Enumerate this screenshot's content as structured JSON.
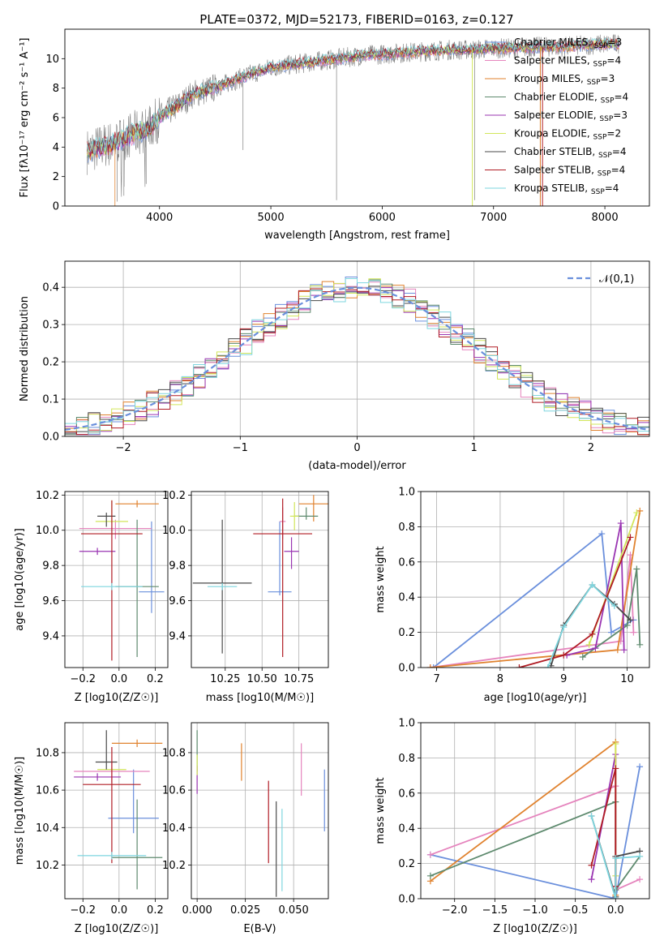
{
  "figure_title": "PLATE=0372, MJD=52173, FIBERID=0163, z=0.127",
  "colors": {
    "Chabrier MILES": "#6a8fdc",
    "Salpeter MILES": "#e584bd",
    "Kroupa MILES": "#e0822e",
    "Chabrier ELODIE": "#5e8a6e",
    "Salpeter ELODIE": "#9a35b2",
    "Kroupa ELODIE": "#d2e65a",
    "Chabrier STELIB": "#4a4a4a",
    "Salpeter STELIB": "#b01c24",
    "Kroupa STELIB": "#7ed6df",
    "data": "#808080",
    "normal": "#6a8fdc"
  },
  "chart_data": [
    {
      "id": "spectrum",
      "type": "line",
      "title": "PLATE=0372, MJD=52173, FIBERID=0163, z=0.127",
      "xlabel": "wavelength [Angstrom, rest frame]",
      "ylabel": "Flux [fλ10⁻¹⁷ erg cm⁻² s⁻¹ A⁻¹]",
      "xlim": [
        3150,
        8400
      ],
      "ylim": [
        0,
        12
      ],
      "xticks": [
        "4000",
        "5000",
        "6000",
        "7000",
        "8000"
      ],
      "yticks": [
        "0",
        "2",
        "4",
        "6",
        "8",
        "10"
      ],
      "grid": false,
      "legend": "top-right",
      "legend_entries": [
        "Chabrier MILES, NSSP=3",
        "Salpeter MILES, NSSP=4",
        "Kroupa MILES, NSSP=3",
        "Chabrier ELODIE, NSSP=4",
        "Salpeter ELODIE, NSSP=3",
        "Kroupa ELODIE, NSSP=2",
        "Chabrier STELIB, NSSP=4",
        "Salpeter STELIB, NSSP=4",
        "Kroupa STELIB, NSSP=4"
      ],
      "continuum": {
        "x": [
          3350,
          3500,
          3600,
          3700,
          3800,
          3900,
          4000,
          4100,
          4200,
          4300,
          4400,
          4600,
          4800,
          5000,
          5200,
          5400,
          5600,
          5800,
          6000,
          6200,
          6400,
          6600,
          6800,
          7000,
          7200,
          7400,
          7600,
          7800,
          8000,
          8100
        ],
        "y": [
          3.7,
          4.1,
          4.3,
          4.7,
          5.0,
          5.2,
          6.0,
          6.5,
          7.0,
          7.6,
          7.8,
          8.3,
          8.9,
          9.4,
          9.6,
          9.8,
          10.0,
          10.2,
          10.3,
          10.4,
          10.5,
          10.6,
          10.6,
          10.7,
          10.7,
          10.8,
          10.8,
          10.9,
          11.0,
          11.0
        ]
      }
    },
    {
      "id": "residuals",
      "type": "histogram",
      "xlabel": "(data-model)/error",
      "ylabel": "Normed distribution",
      "xlim": [
        -2.5,
        2.5
      ],
      "ylim": [
        0,
        0.47
      ],
      "xticks": [
        "−2",
        "−1",
        "0",
        "1",
        "2"
      ],
      "yticks": [
        "0.0",
        "0.1",
        "0.2",
        "0.3",
        "0.4"
      ],
      "grid": true,
      "legend": "top-right",
      "legend_entries": [
        "𝒩(0,1)"
      ],
      "bins": {
        "start": -2.5,
        "width": 0.1,
        "count": 50
      }
    },
    {
      "id": "age-vs-z",
      "type": "scatter",
      "xlabel": "Z [log10(Z/Z☉)]",
      "ylabel": "age  [log10(age/yr)]",
      "xlim": [
        -0.3,
        0.27
      ],
      "ylim": [
        9.22,
        10.22
      ],
      "xticks": [
        "−0.2",
        "0.0",
        "0.2"
      ],
      "yticks": [
        "9.4",
        "9.6",
        "9.8",
        "10.0",
        "10.2"
      ],
      "grid": true,
      "points": [
        {
          "model": "Chabrier MILES",
          "x": 0.18,
          "y": 9.65,
          "xerr": 0.07,
          "yerr": [
            0.12,
            0.4
          ]
        },
        {
          "model": "Salpeter MILES",
          "x": -0.02,
          "y": 10.01,
          "xerr": 0.2,
          "yerr": [
            0.06,
            0.05
          ]
        },
        {
          "model": "Kroupa MILES",
          "x": 0.1,
          "y": 10.15,
          "xerr": 0.12,
          "yerr": [
            0.02,
            0.02
          ]
        },
        {
          "model": "Chabrier ELODIE",
          "x": 0.1,
          "y": 9.68,
          "xerr": 0.12,
          "yerr": [
            0.4,
            0.38
          ]
        },
        {
          "model": "Salpeter ELODIE",
          "x": -0.12,
          "y": 9.88,
          "xerr": 0.1,
          "yerr": [
            0.02,
            0.02
          ]
        },
        {
          "model": "Kroupa ELODIE",
          "x": -0.04,
          "y": 10.05,
          "xerr": 0.09,
          "yerr": [
            0.01,
            0.12
          ]
        },
        {
          "model": "Chabrier STELIB",
          "x": -0.07,
          "y": 10.08,
          "xerr": 0.05,
          "yerr": [
            0.06,
            0.02
          ]
        },
        {
          "model": "Salpeter STELIB",
          "x": -0.04,
          "y": 9.98,
          "xerr": 0.17,
          "yerr": [
            0.72,
            0.19
          ]
        },
        {
          "model": "Kroupa STELIB",
          "x": -0.04,
          "y": 9.68,
          "xerr": 0.17,
          "yerr": [
            0.02,
            0.02
          ]
        }
      ]
    },
    {
      "id": "age-vs-mass",
      "type": "scatter",
      "xlabel": "mass [log10(M/M☉)]",
      "ylabel": "",
      "xlim": [
        10.02,
        10.95
      ],
      "ylim": [
        9.22,
        10.22
      ],
      "xticks": [
        "10.25",
        "10.50",
        "10.75"
      ],
      "yticks": [
        "9.4",
        "9.6",
        "9.8",
        "10.0",
        "10.2"
      ],
      "grid": true,
      "points": [
        {
          "model": "Chabrier MILES",
          "x": 10.62,
          "y": 9.65,
          "xerr": 0.08,
          "yerr": [
            0.02,
            0.4
          ]
        },
        {
          "model": "Salpeter MILES",
          "x": 10.64,
          "y": 10.05,
          "xerr": 0.02,
          "yerr": [
            0.1,
            0.08
          ]
        },
        {
          "model": "Kroupa MILES",
          "x": 10.85,
          "y": 10.15,
          "xerr": 0.1,
          "yerr": [
            0.1,
            0.05
          ]
        },
        {
          "model": "Chabrier ELODIE",
          "x": 10.8,
          "y": 10.08,
          "xerr": 0.08,
          "yerr": [
            0.02,
            0.05
          ]
        },
        {
          "model": "Salpeter ELODIE",
          "x": 10.7,
          "y": 9.88,
          "xerr": 0.05,
          "yerr": [
            0.1,
            0.08
          ]
        },
        {
          "model": "Kroupa ELODIE",
          "x": 10.72,
          "y": 10.08,
          "xerr": 0.03,
          "yerr": [
            0.08,
            0.08
          ]
        },
        {
          "model": "Chabrier STELIB",
          "x": 10.23,
          "y": 9.7,
          "xerr": 0.2,
          "yerr": [
            0.4,
            0.36
          ]
        },
        {
          "model": "Salpeter STELIB",
          "x": 10.64,
          "y": 9.98,
          "xerr": 0.2,
          "yerr": [
            0.7,
            0.2
          ]
        },
        {
          "model": "Kroupa STELIB",
          "x": 10.23,
          "y": 9.68,
          "xerr": 0.1,
          "yerr": [
            0.02,
            0.02
          ]
        }
      ]
    },
    {
      "id": "weight-vs-age",
      "type": "line",
      "xlabel": "age  [log10(age/yr)]",
      "ylabel": "mass weight",
      "xlim": [
        6.75,
        10.35
      ],
      "ylim": [
        0,
        1
      ],
      "xticks": [
        "7",
        "8",
        "9",
        "10"
      ],
      "yticks": [
        "0.0",
        "0.2",
        "0.4",
        "0.6",
        "0.8",
        "1.0"
      ],
      "grid": true,
      "series": [
        {
          "model": "Chabrier MILES",
          "x": [
            6.95,
            9.6,
            9.75,
            10.1
          ],
          "y": [
            0.0,
            0.76,
            0.2,
            0.27
          ]
        },
        {
          "model": "Salpeter MILES",
          "x": [
            6.9,
            9.9,
            10.05,
            10.1
          ],
          "y": [
            0.0,
            0.15,
            0.64,
            0.2
          ]
        },
        {
          "model": "Kroupa MILES",
          "x": [
            6.9,
            9.85,
            10.2
          ],
          "y": [
            0.0,
            0.1,
            0.89
          ]
        },
        {
          "model": "Chabrier ELODIE",
          "x": [
            9.3,
            10.0,
            10.15,
            10.2
          ],
          "y": [
            0.06,
            0.24,
            0.56,
            0.13
          ]
        },
        {
          "model": "Salpeter ELODIE",
          "x": [
            9.05,
            9.5,
            9.9,
            9.95
          ],
          "y": [
            0.07,
            0.11,
            0.82,
            0.1
          ]
        },
        {
          "model": "Kroupa ELODIE",
          "x": [
            9.4,
            10.15
          ],
          "y": [
            0.13,
            0.88
          ]
        },
        {
          "model": "Chabrier STELIB",
          "x": [
            8.8,
            9.0,
            9.45,
            9.8,
            10.05
          ],
          "y": [
            0.01,
            0.24,
            0.47,
            0.36,
            0.27
          ]
        },
        {
          "model": "Salpeter STELIB",
          "x": [
            8.3,
            9.0,
            9.45,
            10.05
          ],
          "y": [
            0.0,
            0.07,
            0.19,
            0.74
          ]
        },
        {
          "model": "Kroupa STELIB",
          "x": [
            8.75,
            9.0,
            9.45,
            9.8
          ],
          "y": [
            0.0,
            0.23,
            0.47,
            0.35
          ]
        }
      ]
    },
    {
      "id": "mass-vs-z",
      "type": "scatter",
      "xlabel": "Z [log10(Z/Z☉)]",
      "ylabel": "mass [log10(M/M☉)]",
      "xlim": [
        -0.3,
        0.27
      ],
      "ylim": [
        10.02,
        10.96
      ],
      "xticks": [
        "−0.2",
        "0.0",
        "0.2"
      ],
      "yticks": [
        "10.2",
        "10.4",
        "10.6",
        "10.8"
      ],
      "grid": true,
      "points": [
        {
          "model": "Chabrier MILES",
          "x": 0.08,
          "y": 10.45,
          "xerr": 0.14,
          "yerr": [
            0.08,
            0.26
          ]
        },
        {
          "model": "Salpeter MILES",
          "x": -0.04,
          "y": 10.7,
          "xerr": 0.21,
          "yerr": [
            0.06,
            0.05
          ]
        },
        {
          "model": "Kroupa MILES",
          "x": 0.1,
          "y": 10.85,
          "xerr": 0.14,
          "yerr": [
            0.02,
            0.02
          ]
        },
        {
          "model": "Chabrier ELODIE",
          "x": 0.1,
          "y": 10.24,
          "xerr": 0.14,
          "yerr": [
            0.17,
            0.31
          ]
        },
        {
          "model": "Salpeter ELODIE",
          "x": -0.12,
          "y": 10.67,
          "xerr": 0.13,
          "yerr": [
            0.02,
            0.02
          ]
        },
        {
          "model": "Kroupa ELODIE",
          "x": -0.04,
          "y": 10.71,
          "xerr": 0.08,
          "yerr": [
            0.01,
            0.01
          ]
        },
        {
          "model": "Chabrier STELIB",
          "x": -0.07,
          "y": 10.75,
          "xerr": 0.06,
          "yerr": [
            0.04,
            0.17
          ]
        },
        {
          "model": "Salpeter STELIB",
          "x": -0.04,
          "y": 10.63,
          "xerr": 0.16,
          "yerr": [
            0.42,
            0.2
          ]
        },
        {
          "model": "Kroupa STELIB",
          "x": -0.04,
          "y": 10.25,
          "xerr": 0.19,
          "yerr": [
            0.02,
            0.02
          ]
        }
      ]
    },
    {
      "id": "mass-vs-ebv",
      "type": "scatter",
      "xlabel": "E(B-V)",
      "ylabel": "",
      "xlim": [
        -0.003,
        0.068
      ],
      "ylim": [
        10.02,
        10.96
      ],
      "xticks": [
        "0.000",
        "0.025",
        "0.050"
      ],
      "yticks": [
        "10.2",
        "10.4",
        "10.6",
        "10.8"
      ],
      "grid": true,
      "points": [
        {
          "model": "Chabrier MILES",
          "x": 0.066,
          "y": 10.55,
          "xerr": 0.0,
          "yerr": [
            0.17,
            0.16
          ]
        },
        {
          "model": "Salpeter MILES",
          "x": 0.054,
          "y": 10.72,
          "xerr": 0.0,
          "yerr": [
            0.15,
            0.13
          ]
        },
        {
          "model": "Kroupa MILES",
          "x": 0.023,
          "y": 10.75,
          "xerr": 0.0,
          "yerr": [
            0.1,
            0.1
          ]
        },
        {
          "model": "Chabrier ELODIE",
          "x": 0.0,
          "y": 10.8,
          "xerr": 0.0,
          "yerr": [
            0.1,
            0.12
          ]
        },
        {
          "model": "Salpeter ELODIE",
          "x": 0.0,
          "y": 10.65,
          "xerr": 0.0,
          "yerr": [
            0.07,
            0.08
          ]
        },
        {
          "model": "Kroupa ELODIE",
          "x": 0.0,
          "y": 10.72,
          "xerr": 0.0,
          "yerr": [
            0.04,
            0.07
          ]
        },
        {
          "model": "Chabrier STELIB",
          "x": 0.041,
          "y": 10.33,
          "xerr": 0.0,
          "yerr": [
            0.3,
            0.21
          ]
        },
        {
          "model": "Salpeter STELIB",
          "x": 0.037,
          "y": 10.43,
          "xerr": 0.0,
          "yerr": [
            0.22,
            0.22
          ]
        },
        {
          "model": "Kroupa STELIB",
          "x": 0.044,
          "y": 10.26,
          "xerr": 0.0,
          "yerr": [
            0.2,
            0.24
          ]
        }
      ]
    },
    {
      "id": "weight-vs-z",
      "type": "line",
      "xlabel": "Z [log10(Z/Z☉)]",
      "ylabel": "mass weight",
      "xlim": [
        -2.42,
        0.42
      ],
      "ylim": [
        0,
        1
      ],
      "xticks": [
        "−2.0",
        "−1.5",
        "−1.0",
        "−0.5",
        "0.0"
      ],
      "yticks": [
        "0.0",
        "0.2",
        "0.4",
        "0.6",
        "0.8",
        "1.0"
      ],
      "grid": true,
      "series": [
        {
          "model": "Chabrier MILES",
          "x": [
            -2.3,
            0.0,
            0.3
          ],
          "y": [
            0.25,
            0.0,
            0.75
          ]
        },
        {
          "model": "Salpeter MILES",
          "x": [
            -2.3,
            0.0,
            0.0,
            0.3
          ],
          "y": [
            0.25,
            0.64,
            0.05,
            0.11
          ]
        },
        {
          "model": "Kroupa MILES",
          "x": [
            -2.3,
            0.0,
            0.0
          ],
          "y": [
            0.1,
            0.89,
            0.02
          ]
        },
        {
          "model": "Chabrier ELODIE",
          "x": [
            -2.3,
            0.0,
            0.0,
            0.3
          ],
          "y": [
            0.13,
            0.55,
            0.05,
            0.24
          ]
        },
        {
          "model": "Salpeter ELODIE",
          "x": [
            -0.3,
            0.0,
            0.0
          ],
          "y": [
            0.11,
            0.82,
            0.07
          ]
        },
        {
          "model": "Kroupa ELODIE",
          "x": [
            0.0,
            0.0
          ],
          "y": [
            0.13,
            0.88
          ]
        },
        {
          "model": "Chabrier STELIB",
          "x": [
            -0.3,
            0.0,
            0.0,
            0.3
          ],
          "y": [
            0.47,
            0.01,
            0.24,
            0.27
          ]
        },
        {
          "model": "Salpeter STELIB",
          "x": [
            -0.3,
            0.0,
            0.0
          ],
          "y": [
            0.19,
            0.74,
            0.07
          ]
        },
        {
          "model": "Kroupa STELIB",
          "x": [
            -0.3,
            0.0,
            0.0,
            0.3
          ],
          "y": [
            0.47,
            0.0,
            0.23,
            0.24
          ]
        }
      ]
    }
  ]
}
